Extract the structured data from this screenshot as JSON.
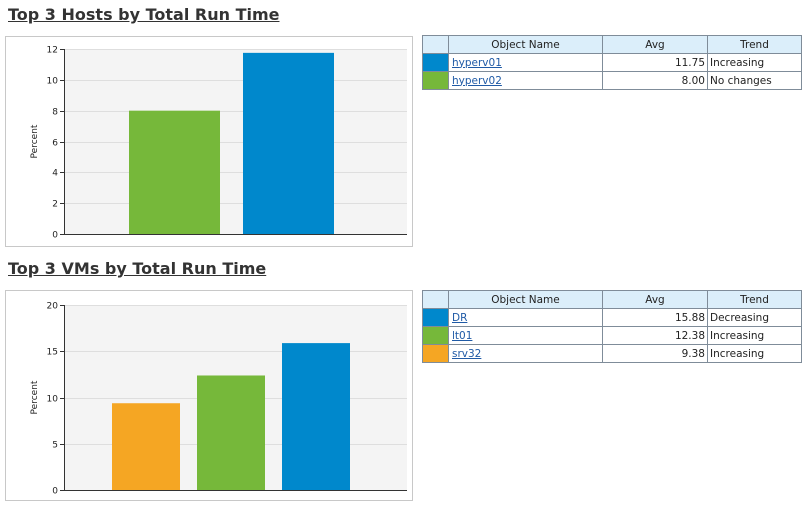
{
  "colors": {
    "blue": "#0088cc",
    "green": "#76b83a",
    "orange": "#f5a623"
  },
  "table_headers": {
    "object_name": "Object Name",
    "avg": "Avg",
    "trend": "Trend"
  },
  "hosts": {
    "title": "Top 3 Hosts by Total Run Time",
    "rows": [
      {
        "color": "#0088cc",
        "name": "hyperv01",
        "avg": "11.75",
        "trend": "Increasing"
      },
      {
        "color": "#76b83a",
        "name": "hyperv02",
        "avg": "8.00",
        "trend": "No changes"
      }
    ]
  },
  "vms": {
    "title": "Top 3 VMs by Total Run Time",
    "rows": [
      {
        "color": "#0088cc",
        "name": "DR",
        "avg": "15.88",
        "trend": "Decreasing"
      },
      {
        "color": "#76b83a",
        "name": "lt01",
        "avg": "12.38",
        "trend": "Increasing"
      },
      {
        "color": "#f5a623",
        "name": "srv32",
        "avg": "9.38",
        "trend": "Increasing"
      }
    ]
  },
  "chart_data": [
    {
      "type": "bar",
      "ylabel": "Percent",
      "ylim": [
        0,
        12
      ],
      "yticks": [
        0,
        2,
        4,
        6,
        8,
        10,
        12
      ],
      "grid": true,
      "categories": [
        "hyperv02",
        "hyperv01"
      ],
      "values": [
        8.0,
        11.75
      ],
      "colors": [
        "#76b83a",
        "#0088cc"
      ]
    },
    {
      "type": "bar",
      "ylabel": "Percent",
      "ylim": [
        0,
        20
      ],
      "yticks": [
        0,
        5,
        10,
        15,
        20
      ],
      "grid": true,
      "categories": [
        "srv32",
        "lt01",
        "DR"
      ],
      "values": [
        9.38,
        12.38,
        15.88
      ],
      "colors": [
        "#f5a623",
        "#76b83a",
        "#0088cc"
      ]
    }
  ]
}
